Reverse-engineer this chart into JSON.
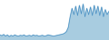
{
  "values": [
    12,
    10,
    13,
    9,
    12,
    8,
    11,
    9,
    12,
    10,
    9,
    11,
    10,
    12,
    9,
    10,
    11,
    9,
    12,
    10,
    11,
    9,
    10,
    11,
    9,
    10,
    12,
    11,
    10,
    9,
    10,
    11,
    12,
    13,
    14,
    16,
    20,
    30,
    55,
    75,
    60,
    80,
    58,
    82,
    62,
    85,
    55,
    75,
    60,
    78,
    58,
    82,
    62,
    80,
    58,
    78,
    55,
    72,
    60,
    68
  ],
  "line_color": "#4a90c4",
  "fill_color": "#a8cce0",
  "background_color": "#ffffff",
  "ylim_min": 0,
  "ylim_max": 95
}
